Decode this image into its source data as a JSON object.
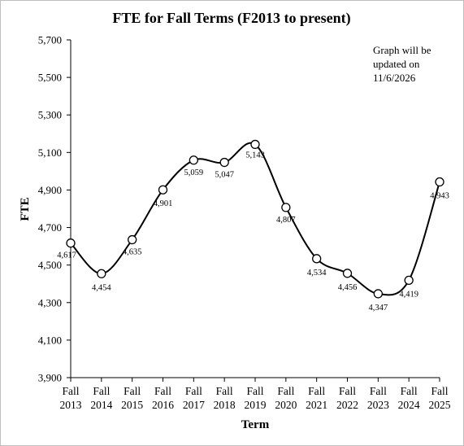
{
  "chart_data": {
    "type": "line",
    "title": "FTE  for Fall Terms  (F2013 to present)",
    "xlabel": "Term",
    "ylabel": "FTE",
    "categories": [
      [
        "Fall",
        "2013"
      ],
      [
        "Fall",
        "2014"
      ],
      [
        "Fall",
        "2015"
      ],
      [
        "Fall",
        "2016"
      ],
      [
        "Fall",
        "2017"
      ],
      [
        "Fall",
        "2018"
      ],
      [
        "Fall",
        "2019"
      ],
      [
        "Fall",
        "2020"
      ],
      [
        "Fall",
        "2021"
      ],
      [
        "Fall",
        "2022"
      ],
      [
        "Fall",
        "2023"
      ],
      [
        "Fall",
        "2024"
      ],
      [
        "Fall",
        "2025"
      ]
    ],
    "values": [
      4617,
      4454,
      4635,
      4901,
      5059,
      5047,
      5143,
      4807,
      4534,
      4456,
      4347,
      4419,
      4943
    ],
    "data_labels": [
      "4,617",
      "4,454",
      "4,635",
      "4,901",
      "5,059",
      "5,047",
      "5,143",
      "4,807",
      "4,534",
      "4,456",
      "4,347",
      "4,419",
      "4,943"
    ],
    "ylim": [
      3900,
      5700
    ],
    "yticks": [
      3900,
      4100,
      4300,
      4500,
      4700,
      4900,
      5100,
      5300,
      5500,
      5700
    ],
    "ytick_labels": [
      "3,900",
      "4,100",
      "4,300",
      "4,500",
      "4,700",
      "4,900",
      "5,100",
      "5,300",
      "5,500",
      "5,700"
    ],
    "grid": false,
    "smooth": true,
    "marker": "open-circle",
    "line_color": "#000000",
    "annotation": [
      "Graph will be",
      "updated on",
      "11/6/2026"
    ]
  }
}
